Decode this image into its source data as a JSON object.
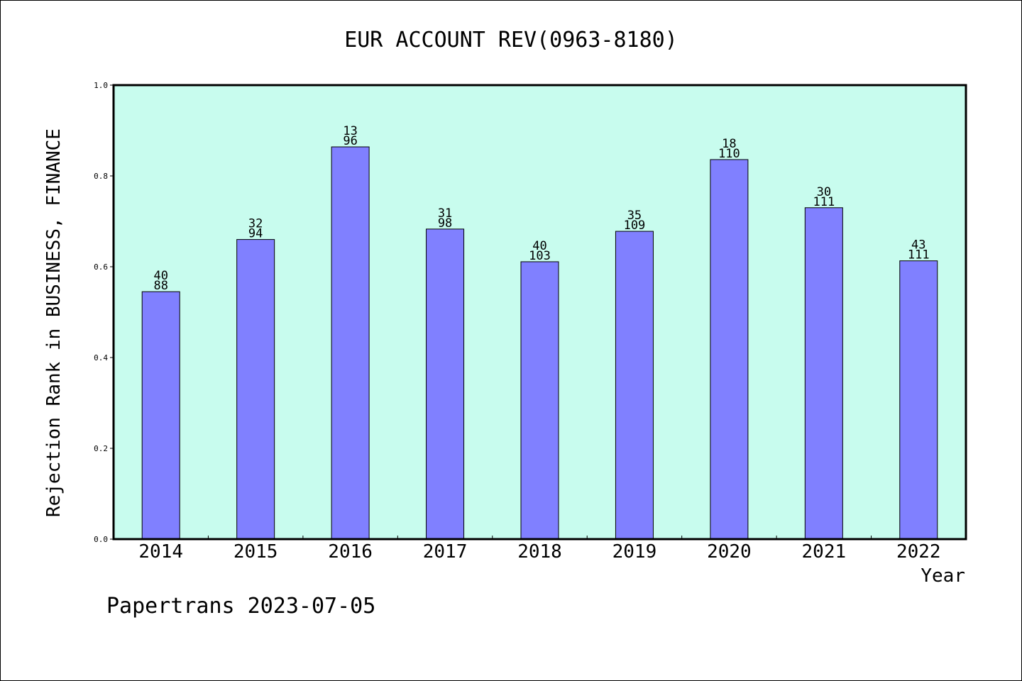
{
  "chart_data": {
    "type": "bar",
    "title": "EUR ACCOUNT REV(0963-8180)",
    "xlabel": "Year",
    "ylabel": "Rejection Rank in BUSINESS, FINANCE",
    "ylim": [
      0,
      1
    ],
    "yticks": [
      "0.0",
      "0.2",
      "0.4",
      "0.6",
      "0.8",
      "1.0"
    ],
    "categories": [
      "2014",
      "2015",
      "2016",
      "2017",
      "2018",
      "2019",
      "2020",
      "2021",
      "2022"
    ],
    "values": [
      0.545,
      0.66,
      0.864,
      0.683,
      0.611,
      0.678,
      0.836,
      0.73,
      0.613
    ],
    "label_top": [
      "40",
      "32",
      "13",
      "31",
      "40",
      "35",
      "18",
      "30",
      "43"
    ],
    "label_bottom": [
      "88",
      "94",
      "96",
      "98",
      "103",
      "109",
      "110",
      "111",
      "111"
    ],
    "colors": {
      "plot_background": "#c8fcee",
      "bar_fill": "#8080ff"
    },
    "grid": false
  },
  "footer": "Papertrans 2023-07-05"
}
